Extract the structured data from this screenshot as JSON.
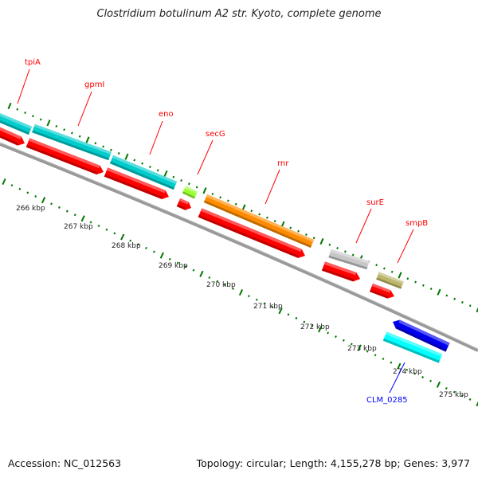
{
  "title": "Clostridium botulinum A2 str. Kyoto, complete genome",
  "footer": {
    "accession": "Accession: NC_012563",
    "topology": "Topology: circular; Length: 4,155,278 bp; Genes: 3,977"
  },
  "genes": [
    {
      "name": "tpiA",
      "color": "#ff0000"
    },
    {
      "name": "gpmI",
      "color": "#ff0000"
    },
    {
      "name": "eno",
      "color": "#ff0000"
    },
    {
      "name": "secG",
      "color": "#ff0000"
    },
    {
      "name": "rnr",
      "color": "#ff0000"
    },
    {
      "name": "surE",
      "color": "#ff0000"
    },
    {
      "name": "smpB",
      "color": "#ff0000"
    },
    {
      "name": "CLM_0285",
      "color": "#0000ff"
    }
  ],
  "ticks": [
    "266 kbp",
    "267 kbp",
    "268 kbp",
    "269 kbp",
    "270 kbp",
    "271 kbp",
    "272 kbp",
    "273 kbp",
    "274 kbp",
    "275 kbp"
  ],
  "colors": {
    "cog_cyan": "#00cccc",
    "cds_red": "#ff0000",
    "orange": "#ff8c00",
    "green": "#99ff33",
    "gray": "#c8c8c8",
    "khaki": "#bdb76b",
    "blue": "#0000ee",
    "aqua": "#00ffff",
    "backbone": "#888888",
    "tick": "#007700"
  }
}
